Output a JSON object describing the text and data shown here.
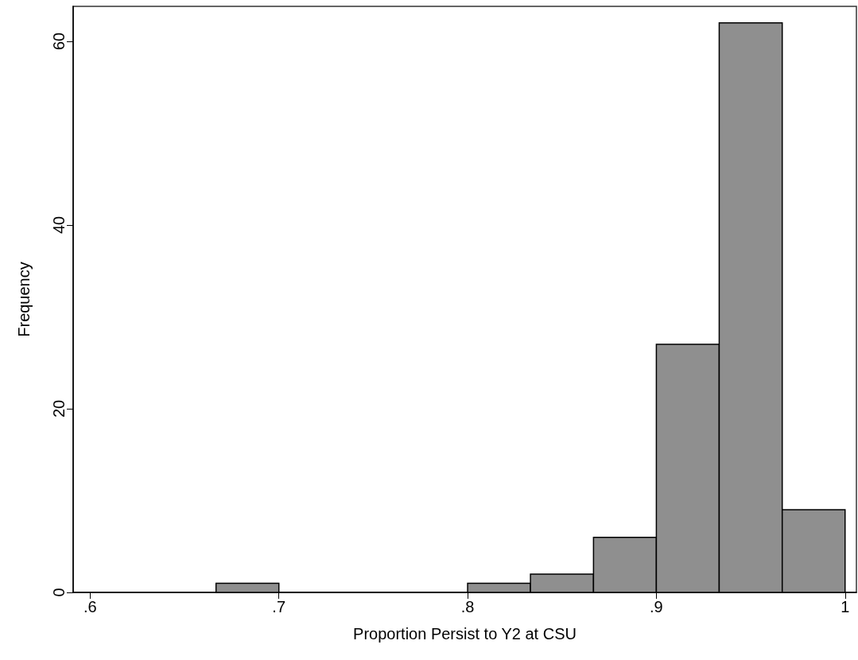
{
  "chart_data": {
    "type": "histogram",
    "xlabel": "Proportion Persist to Y2 at CSU",
    "ylabel": "Frequency",
    "bins": [
      0.6667,
      0.7,
      0.7333,
      0.7667,
      0.8,
      0.8333,
      0.8667,
      0.9,
      0.9333,
      0.9667,
      1.0
    ],
    "values": [
      1,
      0,
      0,
      0,
      1,
      2,
      6,
      27,
      62,
      9
    ],
    "color": "#8f8f8f",
    "xlim": [
      0.591,
      1.006
    ],
    "xticks": [
      {
        "value": 0.6,
        "label": ".6"
      },
      {
        "value": 0.7,
        "label": ".7"
      },
      {
        "value": 0.8,
        "label": ".8"
      },
      {
        "value": 0.9,
        "label": ".9"
      },
      1
    ],
    "ylim": [
      0,
      63.8
    ],
    "yticks": [
      0,
      20,
      40,
      60
    ],
    "grid": false
  }
}
